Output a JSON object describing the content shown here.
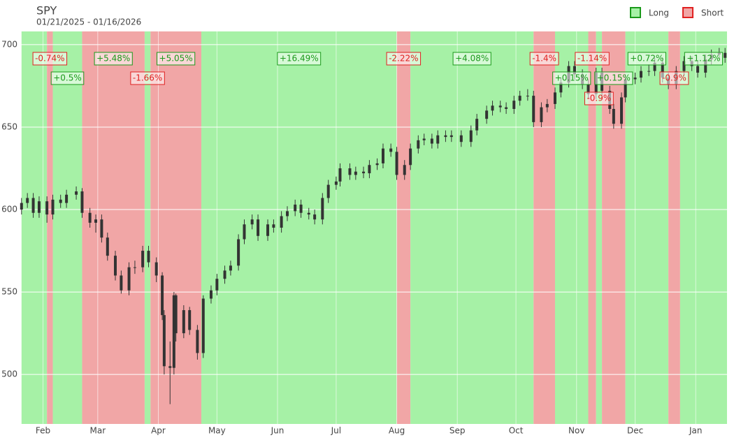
{
  "chart_data": {
    "type": "candlestick",
    "title": "SPY",
    "subtitle": "01/21/2025 - 01/16/2026",
    "x": [
      "2025-01-21",
      "2025-01-24",
      "2025-01-27",
      "2025-01-30",
      "2025-02-03",
      "2025-02-06",
      "2025-02-10",
      "2025-02-13",
      "2025-02-18",
      "2025-02-21",
      "2025-02-25",
      "2025-02-28",
      "2025-03-03",
      "2025-03-06",
      "2025-03-10",
      "2025-03-13",
      "2025-03-17",
      "2025-03-20",
      "2025-03-24",
      "2025-03-27",
      "2025-03-31",
      "2025-04-03",
      "2025-04-04",
      "2025-04-07",
      "2025-04-09",
      "2025-04-10",
      "2025-04-14",
      "2025-04-17",
      "2025-04-21",
      "2025-04-24",
      "2025-04-28",
      "2025-05-01",
      "2025-05-05",
      "2025-05-08",
      "2025-05-12",
      "2025-05-15",
      "2025-05-19",
      "2025-05-22",
      "2025-05-27",
      "2025-05-30",
      "2025-06-03",
      "2025-06-06",
      "2025-06-10",
      "2025-06-13",
      "2025-06-17",
      "2025-06-20",
      "2025-06-24",
      "2025-06-27",
      "2025-07-01",
      "2025-07-03",
      "2025-07-08",
      "2025-07-11",
      "2025-07-15",
      "2025-07-18",
      "2025-07-22",
      "2025-07-25",
      "2025-07-29",
      "2025-08-01",
      "2025-08-05",
      "2025-08-08",
      "2025-08-12",
      "2025-08-15",
      "2025-08-19",
      "2025-08-22",
      "2025-08-26",
      "2025-08-29",
      "2025-09-03",
      "2025-09-08",
      "2025-09-11",
      "2025-09-16",
      "2025-09-19",
      "2025-09-23",
      "2025-09-26",
      "2025-09-30",
      "2025-10-03",
      "2025-10-07",
      "2025-10-10",
      "2025-10-14",
      "2025-10-17",
      "2025-10-21",
      "2025-10-24",
      "2025-10-28",
      "2025-10-31",
      "2025-11-04",
      "2025-11-07",
      "2025-11-11",
      "2025-11-14",
      "2025-11-18",
      "2025-11-20",
      "2025-11-24",
      "2025-11-26",
      "2025-12-01",
      "2025-12-04",
      "2025-12-08",
      "2025-12-11",
      "2025-12-15",
      "2025-12-18",
      "2025-12-22",
      "2025-12-26",
      "2025-12-30",
      "2026-01-02",
      "2026-01-06",
      "2026-01-09",
      "2026-01-13",
      "2026-01-16"
    ],
    "open": [
      600,
      604,
      607,
      598,
      605,
      597,
      606,
      604,
      609,
      611,
      598,
      592,
      594,
      583,
      572,
      560,
      551,
      565,
      565,
      575,
      568,
      560,
      536,
      505,
      504,
      548,
      525,
      539,
      527,
      513,
      546,
      551,
      558,
      563,
      566,
      582,
      591,
      594,
      584,
      591,
      589,
      596,
      599,
      603,
      598,
      597,
      594,
      607,
      615,
      617,
      625,
      621,
      623,
      622,
      627,
      628,
      637,
      635,
      621,
      627,
      637,
      642,
      643,
      640,
      645,
      644,
      645,
      641,
      648,
      655,
      660,
      663,
      662,
      661,
      666,
      669,
      669,
      653,
      662,
      664,
      671,
      677,
      687,
      682,
      676,
      670,
      683,
      672,
      661,
      652,
      668,
      679,
      680,
      684,
      684,
      689,
      680,
      676,
      684,
      690,
      687,
      683,
      691,
      694,
      695
    ],
    "high": [
      607,
      610,
      610,
      608,
      608,
      609,
      609,
      612,
      614,
      613,
      601,
      597,
      597,
      586,
      575,
      563,
      568,
      569,
      578,
      578,
      571,
      562,
      539,
      520,
      550,
      549,
      542,
      541,
      530,
      548,
      554,
      561,
      566,
      569,
      585,
      594,
      597,
      597,
      594,
      594,
      599,
      602,
      606,
      606,
      601,
      600,
      610,
      618,
      620,
      628,
      628,
      626,
      626,
      630,
      631,
      640,
      640,
      638,
      630,
      640,
      645,
      646,
      646,
      648,
      648,
      648,
      648,
      651,
      658,
      663,
      666,
      666,
      665,
      669,
      672,
      673,
      672,
      665,
      667,
      674,
      680,
      690,
      690,
      685,
      679,
      686,
      686,
      675,
      664,
      671,
      682,
      683,
      687,
      688,
      692,
      692,
      683,
      687,
      693,
      693,
      690,
      694,
      697,
      698,
      698
    ],
    "low": [
      597,
      601,
      595,
      595,
      592,
      594,
      601,
      601,
      606,
      595,
      589,
      586,
      580,
      569,
      557,
      549,
      548,
      561,
      562,
      565,
      556,
      533,
      500,
      482,
      500,
      520,
      522,
      524,
      509,
      510,
      543,
      548,
      555,
      560,
      563,
      579,
      588,
      581,
      581,
      586,
      586,
      593,
      596,
      595,
      594,
      591,
      591,
      604,
      612,
      614,
      618,
      618,
      619,
      619,
      624,
      625,
      632,
      618,
      618,
      624,
      634,
      639,
      637,
      637,
      641,
      641,
      638,
      638,
      645,
      652,
      657,
      659,
      658,
      658,
      663,
      666,
      650,
      650,
      659,
      661,
      668,
      674,
      679,
      673,
      667,
      667,
      669,
      658,
      649,
      649,
      665,
      676,
      677,
      681,
      681,
      677,
      673,
      673,
      681,
      684,
      680,
      680,
      688,
      691,
      689
    ],
    "close": [
      604,
      607,
      598,
      605,
      597,
      606,
      604,
      609,
      611,
      598,
      592,
      594,
      583,
      572,
      560,
      551,
      565,
      565,
      575,
      568,
      560,
      536,
      505,
      504,
      548,
      525,
      539,
      527,
      513,
      546,
      551,
      558,
      563,
      566,
      582,
      591,
      594,
      584,
      591,
      589,
      596,
      599,
      603,
      598,
      597,
      594,
      607,
      615,
      617,
      625,
      621,
      623,
      622,
      627,
      628,
      637,
      635,
      621,
      627,
      637,
      642,
      643,
      640,
      645,
      644,
      645,
      641,
      648,
      655,
      660,
      663,
      662,
      661,
      666,
      669,
      669,
      653,
      662,
      664,
      671,
      677,
      687,
      682,
      676,
      670,
      683,
      672,
      661,
      652,
      668,
      679,
      680,
      684,
      684,
      689,
      680,
      676,
      684,
      690,
      687,
      683,
      691,
      694,
      695,
      692
    ],
    "candle_color": "#333333",
    "series": [
      {
        "name": "Long",
        "color": "#a6f1a6",
        "border": "#1a9a1a"
      },
      {
        "name": "Short",
        "color": "#f1a6a6",
        "border": "#e02020"
      }
    ],
    "regions": {
      "start": [
        "2025-01-21",
        "2025-02-03",
        "2025-02-06",
        "2025-02-21",
        "2025-03-25",
        "2025-03-28",
        "2025-04-23",
        "2025-08-01",
        "2025-08-08",
        "2025-10-10",
        "2025-10-21",
        "2025-11-07",
        "2025-11-11",
        "2025-11-14",
        "2025-11-26",
        "2025-12-18",
        "2025-12-24"
      ],
      "end": [
        "2025-02-03",
        "2025-02-06",
        "2025-02-21",
        "2025-03-25",
        "2025-03-28",
        "2025-04-23",
        "2025-08-01",
        "2025-08-08",
        "2025-10-10",
        "2025-10-21",
        "2025-11-07",
        "2025-11-11",
        "2025-11-14",
        "2025-11-26",
        "2025-12-18",
        "2025-12-24",
        "2026-01-17"
      ],
      "side": [
        0,
        1,
        0,
        1,
        0,
        1,
        0,
        1,
        0,
        1,
        0,
        1,
        0,
        1,
        0,
        1,
        0
      ],
      "values": [
        null,
        -0.74,
        0.5,
        5.48,
        -1.66,
        5.05,
        16.49,
        -2.22,
        4.08,
        -1.4,
        0.15,
        -1.14,
        -0.9,
        0.15,
        0.72,
        -0.9,
        1.12
      ],
      "value_labels": [
        null,
        "-0.74%",
        "+0.5%",
        "+5.48%",
        "-1.66%",
        "+5.05%",
        "+16.49%",
        "-2.22%",
        "+4.08%",
        "-1.4%",
        "+0.15%",
        "-1.14%",
        "-0.9%",
        "+0.15%",
        "+0.72%",
        "-0.9%",
        "+1.12%"
      ]
    },
    "xlim": [
      "2025-01-20",
      "2026-01-17"
    ],
    "xticks": [
      {
        "value": "2025-02-01",
        "label": "Feb"
      },
      {
        "value": "2025-03-01",
        "label": "Mar"
      },
      {
        "value": "2025-04-01",
        "label": "Apr"
      },
      {
        "value": "2025-05-01",
        "label": "May"
      },
      {
        "value": "2025-06-01",
        "label": "Jun"
      },
      {
        "value": "2025-07-01",
        "label": "Jul"
      },
      {
        "value": "2025-08-01",
        "label": "Aug"
      },
      {
        "value": "2025-09-01",
        "label": "Sep"
      },
      {
        "value": "2025-10-01",
        "label": "Oct"
      },
      {
        "value": "2025-11-01",
        "label": "Nov"
      },
      {
        "value": "2025-12-01",
        "label": "Dec"
      },
      {
        "value": "2026-01-01",
        "label": "Jan"
      }
    ],
    "ylim": [
      470,
      708
    ],
    "yticks": [
      500,
      550,
      600,
      650,
      700
    ],
    "grid": true,
    "legend": "top-right"
  }
}
